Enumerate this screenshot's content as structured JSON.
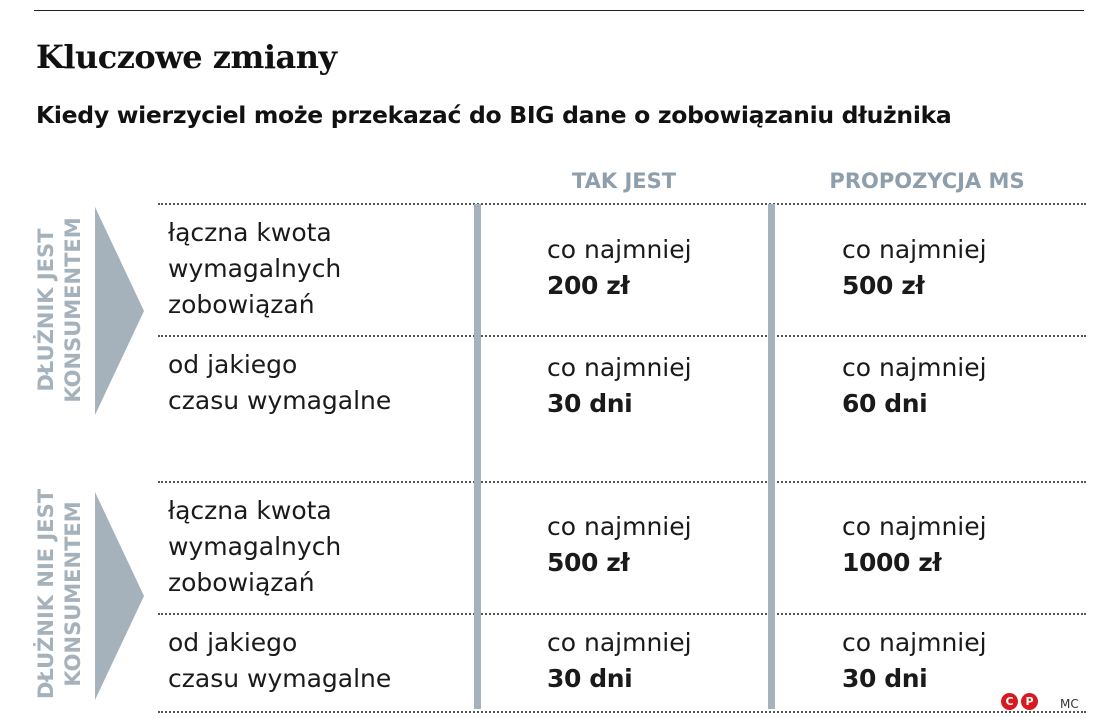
{
  "title": "Kluczowe zmiany",
  "subtitle": "Kiedy wierzyciel może przekazać do BIG dane o zobowiązaniu dłużnika",
  "columns": [
    "TAK JEST",
    "PROPOZYCJA MS"
  ],
  "groups": [
    {
      "label_line1": "DŁUŻNIK JEST",
      "label_line2": "KONSUMENTEM",
      "rows": [
        {
          "label": "łączna kwota\nwymagalnych\nzobowiązań",
          "current": {
            "prefix": "co najmniej",
            "value": "200 zł"
          },
          "proposed": {
            "prefix": "co najmniej",
            "value": "500 zł"
          }
        },
        {
          "label": "od jakiego\nczasu wymagalne",
          "current": {
            "prefix": "co najmniej",
            "value": "30 dni"
          },
          "proposed": {
            "prefix": "co najmniej",
            "value": "60 dni"
          }
        }
      ]
    },
    {
      "label_line1": "DŁUŻNIK NIE JEST",
      "label_line2": "KONSUMENTEM",
      "rows": [
        {
          "label": "łączna kwota\nwymagalnych\nzobowiązań",
          "current": {
            "prefix": "co najmniej",
            "value": "500 zł"
          },
          "proposed": {
            "prefix": "co najmniej",
            "value": "1000 zł"
          }
        },
        {
          "label": "od jakiego\nczasu wymagalne",
          "current": {
            "prefix": "co najmniej",
            "value": "30 dni"
          },
          "proposed": {
            "prefix": "co najmniej",
            "value": "30 dni"
          }
        }
      ]
    }
  ],
  "credit": {
    "c": "C",
    "p": "P",
    "author": "MC"
  },
  "colors": {
    "accent": "#a5b2bc",
    "header": "#8e9fab",
    "credit": "#d71920"
  }
}
